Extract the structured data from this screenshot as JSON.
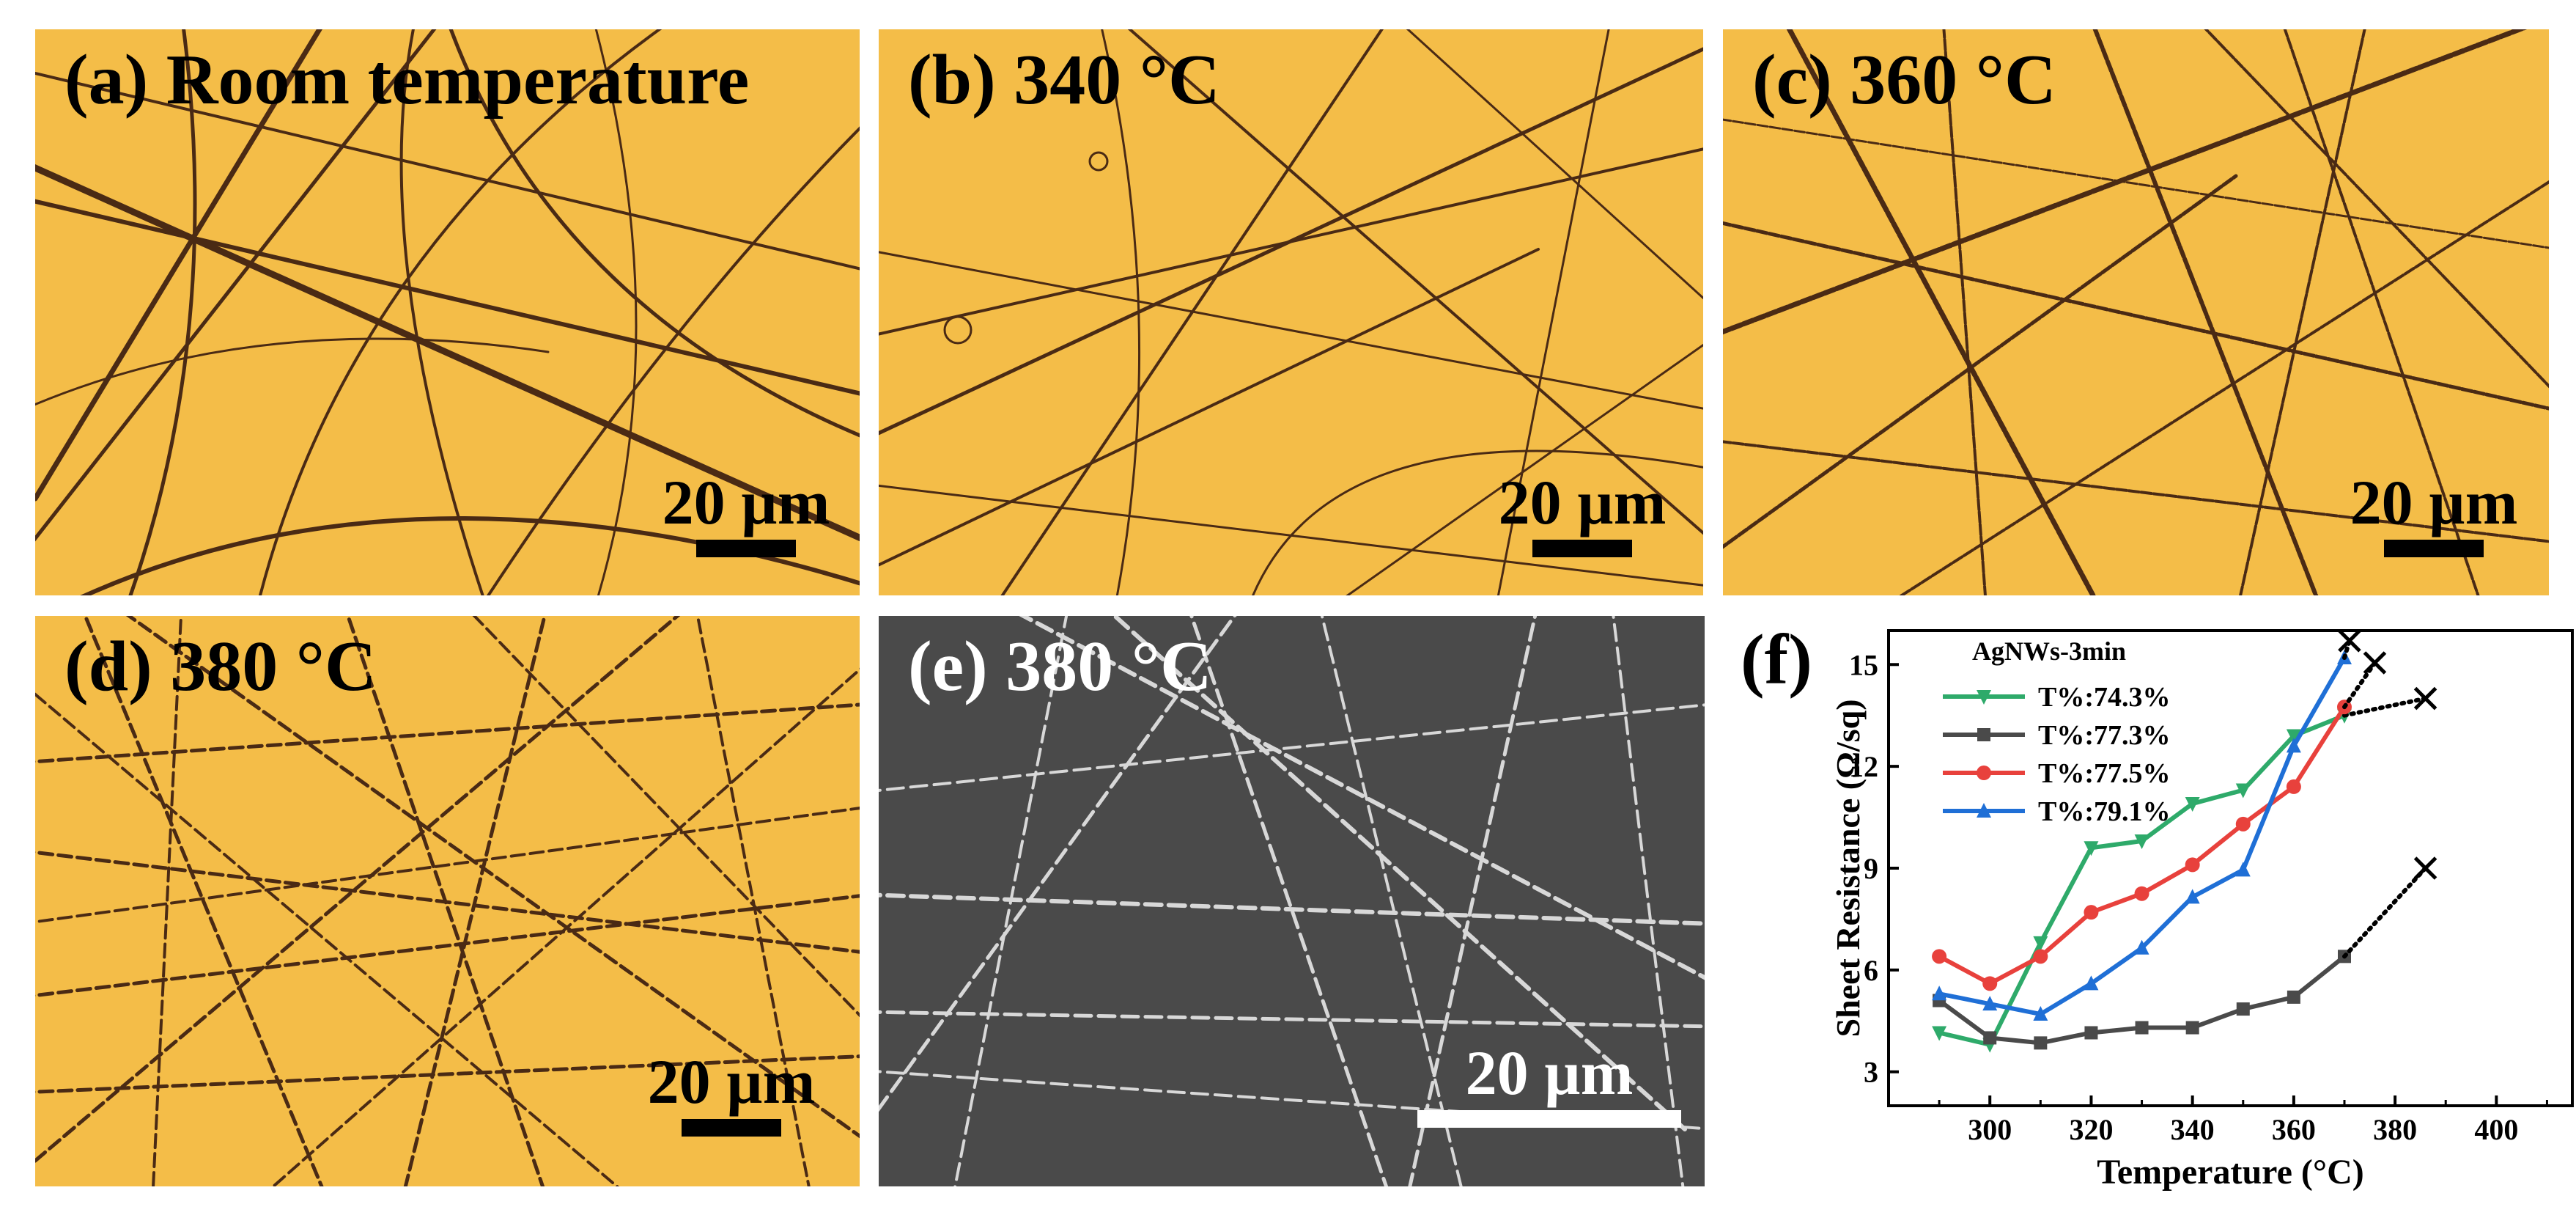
{
  "panels": {
    "a": {
      "label": "(a) Room temperature",
      "scale": "20 µm"
    },
    "b": {
      "label": "(b) 340 °C",
      "scale": "20 µm"
    },
    "c": {
      "label": "(c) 360 °C",
      "scale": "20 µm"
    },
    "d": {
      "label": "(d) 380 °C",
      "scale": "20 µm"
    },
    "e": {
      "label": "(e) 380 °C",
      "scale": "20 µm"
    },
    "f": {
      "label": "(f)"
    }
  },
  "colors": {
    "optical_bg": "#f4bd48",
    "optical_wire": "#4a2a14",
    "sem_bg": "#4a4a4a",
    "sem_wire": "#d8d8d8"
  },
  "chart_data": {
    "type": "line",
    "title": "",
    "legend_title": "AgNWs-3min",
    "xlabel": "Temperature (°C)",
    "ylabel": "Sheet Resistance (Ω/sq)",
    "xlim": [
      280,
      415
    ],
    "ylim": [
      2,
      16
    ],
    "xticks": [
      300,
      320,
      340,
      360,
      380,
      400
    ],
    "yticks": [
      3,
      6,
      9,
      12,
      15
    ],
    "legend_position": "top-left",
    "series": [
      {
        "name": "T%:74.3%",
        "color": "#2eaa6a",
        "marker": "triangle-down",
        "x": [
          290,
          300,
          310,
          320,
          330,
          340,
          350,
          360,
          370
        ],
        "y": [
          4.15,
          3.8,
          6.8,
          9.6,
          9.8,
          10.9,
          11.3,
          12.9,
          13.5
        ],
        "failure": {
          "x": 386,
          "y": 14.0
        }
      },
      {
        "name": "T%:77.3%",
        "color": "#4a4a4a",
        "marker": "square",
        "x": [
          290,
          300,
          310,
          320,
          330,
          340,
          350,
          360,
          370
        ],
        "y": [
          5.1,
          4.0,
          3.85,
          4.15,
          4.3,
          4.3,
          4.85,
          5.2,
          6.4
        ],
        "failure": {
          "x": 386,
          "y": 9.0
        }
      },
      {
        "name": "T%:77.5%",
        "color": "#e8413c",
        "marker": "circle",
        "x": [
          290,
          300,
          310,
          320,
          330,
          340,
          350,
          360,
          370
        ],
        "y": [
          6.4,
          5.6,
          6.4,
          7.7,
          8.25,
          9.1,
          10.3,
          11.4,
          13.75
        ],
        "failure": {
          "x": 376,
          "y": 15.05
        }
      },
      {
        "name": "T%:79.1%",
        "color": "#1f6fd6",
        "marker": "triangle-up",
        "x": [
          290,
          300,
          310,
          320,
          330,
          340,
          350,
          360,
          370
        ],
        "y": [
          5.3,
          5.0,
          4.7,
          5.6,
          6.65,
          8.15,
          8.95,
          12.6,
          15.2
        ],
        "failure": {
          "x": 371,
          "y": 15.7
        }
      }
    ]
  }
}
